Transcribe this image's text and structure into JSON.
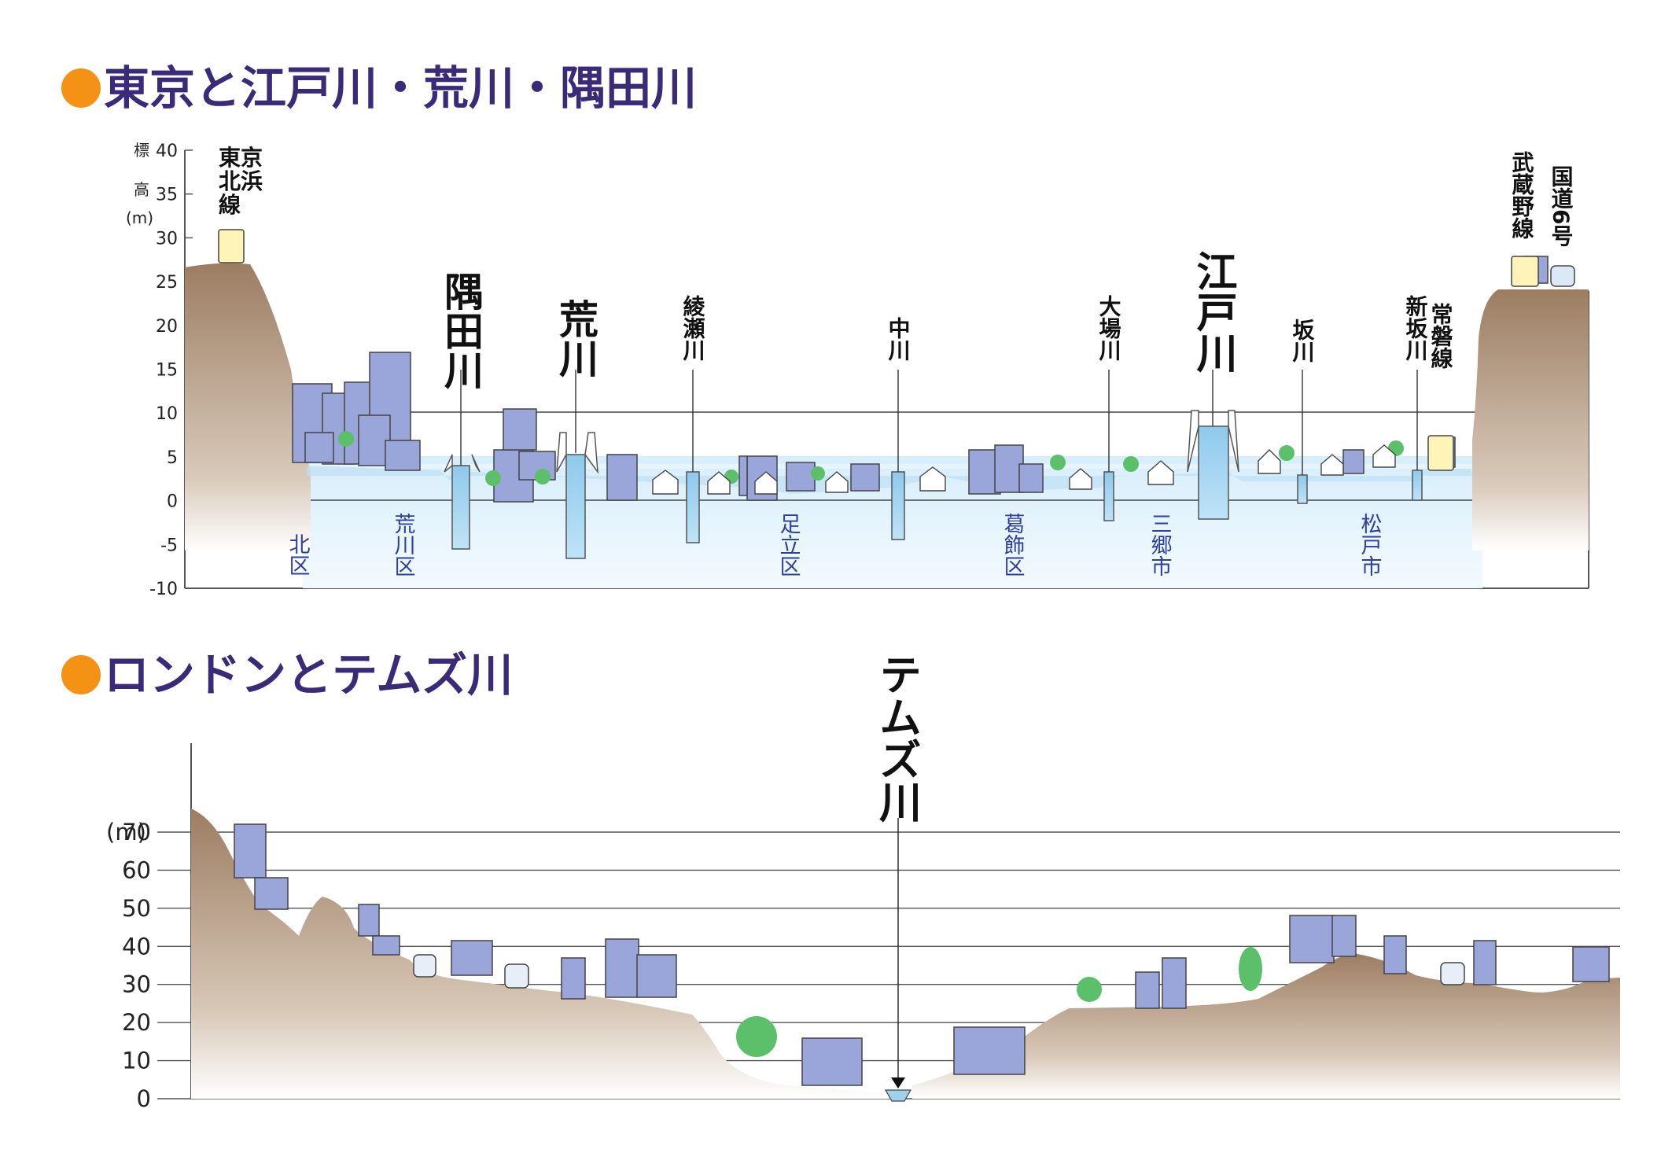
{
  "tokyo": {
    "title": "東京と江戸川・荒川・隅田川",
    "axis_label_chars": [
      "標",
      "高",
      "(m)"
    ],
    "ticks": [
      "40",
      "35",
      "30",
      "25",
      "20",
      "15",
      "10",
      "5",
      "0",
      "-5",
      "-10"
    ],
    "rivers": [
      {
        "label": "隅田川",
        "size": "large"
      },
      {
        "label": "荒川",
        "size": "large"
      },
      {
        "label": "綾瀬川",
        "size": "small"
      },
      {
        "label": "中川",
        "size": "small"
      },
      {
        "label": "大場川",
        "size": "small"
      },
      {
        "label": "江戸川",
        "size": "large"
      },
      {
        "label": "坂川",
        "size": "small"
      },
      {
        "label": "新坂川",
        "size": "small"
      }
    ],
    "rails": [
      {
        "label": "東京",
        "label2": "北浜",
        "label3": "線"
      },
      {
        "label": "武蔵野線"
      },
      {
        "label": "常磐線"
      },
      {
        "label": "国道6号"
      }
    ],
    "wards": [
      "北区",
      "荒川区",
      "足立区",
      "葛飾区",
      "三郷市",
      "松戸市"
    ]
  },
  "london": {
    "title": "ロンドンとテムズ川",
    "ticks": [
      "70",
      "60",
      "50",
      "40",
      "30",
      "20",
      "10",
      "0"
    ],
    "unit": "(m)",
    "river": "テムズ川"
  },
  "colors": {
    "bullet": "#f39214",
    "title": "#3b2a78",
    "ground": "#a58b73",
    "water": "#9fd0ec",
    "building": "#9aa6d9",
    "tree": "#5cbf6a"
  }
}
